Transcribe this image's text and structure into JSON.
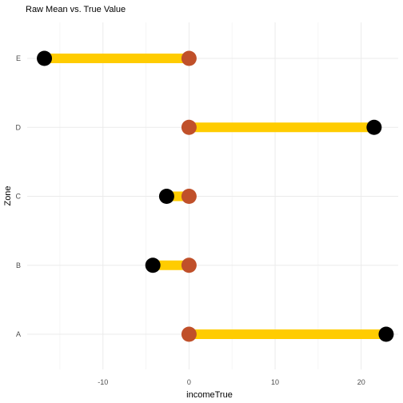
{
  "chart_data": {
    "type": "dumbbell",
    "title": "Raw Mean vs. True Value",
    "xlabel": "incomeTrue",
    "ylabel": "Zone",
    "xlim": [
      -18.8,
      24.3
    ],
    "x_ticks": [
      -10,
      0,
      10,
      20
    ],
    "x_minor_ticks": [
      -15,
      -5,
      5,
      15
    ],
    "grid": true,
    "categories": [
      "A",
      "B",
      "C",
      "D",
      "E"
    ],
    "series": [
      {
        "values": [
          0,
          0,
          0,
          0,
          0
        ]
      },
      {
        "values": [
          22.9,
          -4.2,
          -2.6,
          21.5,
          -16.8
        ]
      }
    ],
    "colors": {
      "segment": "#ffcc00",
      "true_point": "#c0502a",
      "raw_point": "#000000",
      "grid": "#ebebeb",
      "tick_text": "#4d4d4d"
    }
  }
}
